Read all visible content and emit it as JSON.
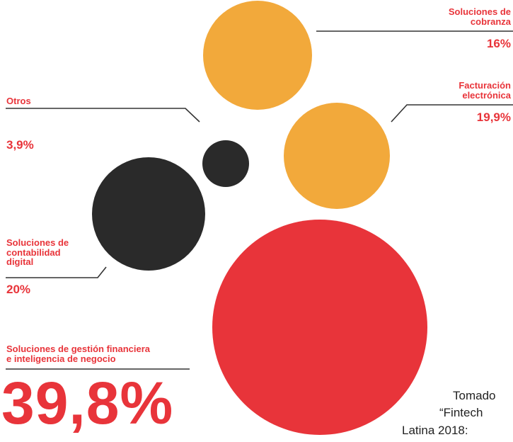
{
  "colors": {
    "orange": "#F2A93B",
    "black": "#2A2A2A",
    "red": "#E8343A",
    "line": "#333333"
  },
  "chart_data": {
    "type": "bubble",
    "series": [
      {
        "label": "Soluciones de cobranza",
        "value_text": "16%",
        "value": 16,
        "color": "orange"
      },
      {
        "label": "Facturación electrónica",
        "value_text": "19,9%",
        "value": 19.9,
        "color": "orange"
      },
      {
        "label": "Otros",
        "value_text": "3,9%",
        "value": 3.9,
        "color": "black"
      },
      {
        "label": "Soluciones de contabilidad digital",
        "value_text": "20%",
        "value": 20,
        "color": "black"
      },
      {
        "label": "Soluciones de gestión financiera e inteligencia de negocio",
        "value_text": "39,8%",
        "value": 39.8,
        "color": "red"
      }
    ]
  },
  "labels": {
    "cobranza": "Soluciones de\ncobranza",
    "cobranza_pct": "16%",
    "facturacion": "Facturación\nelectrónica",
    "facturacion_pct": "19,9%",
    "otros": "Otros",
    "otros_pct": "3,9%",
    "contabilidad": "Soluciones de\ncontabilidad\ndigital",
    "contabilidad_pct": "20%",
    "gestion": "Soluciones de gestión financiera\ne inteligencia de negocio",
    "gestion_pct": "39,8%"
  },
  "source_text": [
    "Tomado",
    "“Fintech",
    "Latina 2018: "
  ]
}
